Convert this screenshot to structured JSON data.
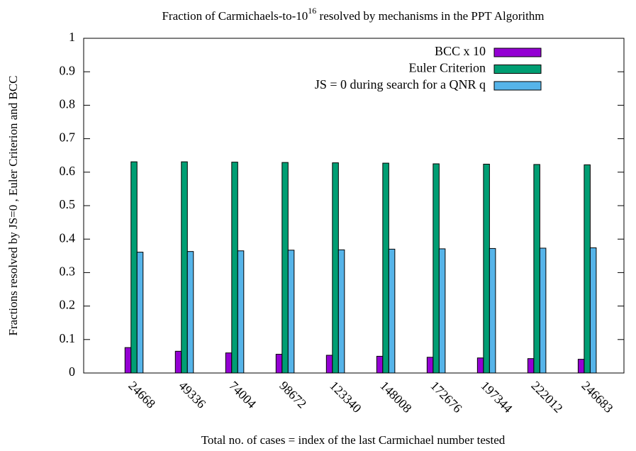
{
  "chart_data": {
    "type": "bar",
    "title": [
      "Fraction of Carmichaels-to-10",
      "16",
      " resolved by mechanisms in the PPT Algorithm"
    ],
    "x_label": "Total no. of cases = index of the last Carmichael number tested",
    "y_label": "Fractions resolved by JS=0 , Euler Criterion and BCC",
    "categories": [
      "24668",
      "49336",
      "74004",
      "98672",
      "123340",
      "148008",
      "172676",
      "197344",
      "222012",
      "246683"
    ],
    "series": [
      {
        "name": "BCC x 10",
        "color": "#9400d3",
        "values": [
          0.076,
          0.065,
          0.06,
          0.056,
          0.053,
          0.05,
          0.047,
          0.045,
          0.043,
          0.041
        ]
      },
      {
        "name": "Euler Criterion",
        "color": "#009e73",
        "values": [
          0.631,
          0.631,
          0.63,
          0.629,
          0.628,
          0.627,
          0.625,
          0.624,
          0.623,
          0.622
        ]
      },
      {
        "name": "JS = 0 during search for a QNR q",
        "color": "#56b4e9",
        "values": [
          0.361,
          0.363,
          0.365,
          0.367,
          0.368,
          0.37,
          0.371,
          0.372,
          0.373,
          0.374
        ]
      }
    ],
    "ylim": [
      0,
      1
    ],
    "yticks": [
      0,
      0.1,
      0.2,
      0.3,
      0.4,
      0.5,
      0.6,
      0.7,
      0.8,
      0.9,
      1
    ],
    "legend": "top-right"
  }
}
